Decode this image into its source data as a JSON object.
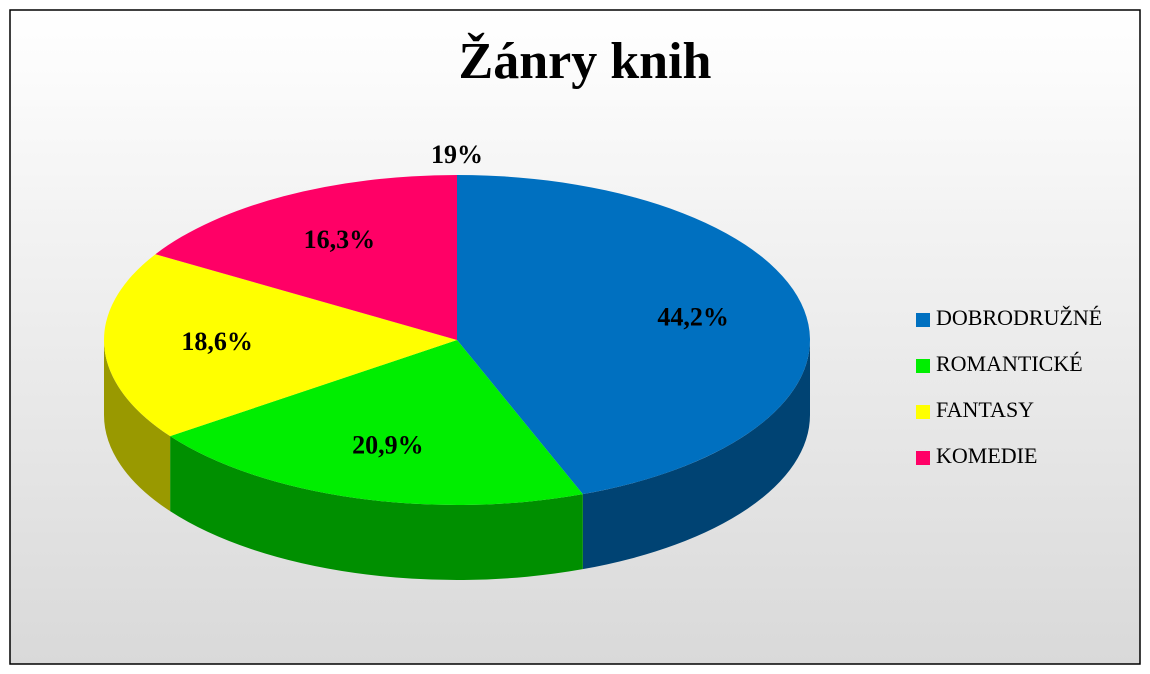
{
  "chart_data": {
    "type": "pie",
    "title": "Žánry knih",
    "annotation": "19%",
    "categories": [
      "DOBRODRUŽNÉ",
      "ROMANTICKÉ",
      "FANTASY",
      "KOMEDIE"
    ],
    "values": [
      44.2,
      20.9,
      18.6,
      16.3
    ],
    "value_labels": [
      "44,2%",
      "20,9%",
      "18,6%",
      "16,3%"
    ],
    "colors": [
      "#0070c0",
      "#00ee00",
      "#ffff00",
      "#ff0066"
    ],
    "legend": "right"
  }
}
